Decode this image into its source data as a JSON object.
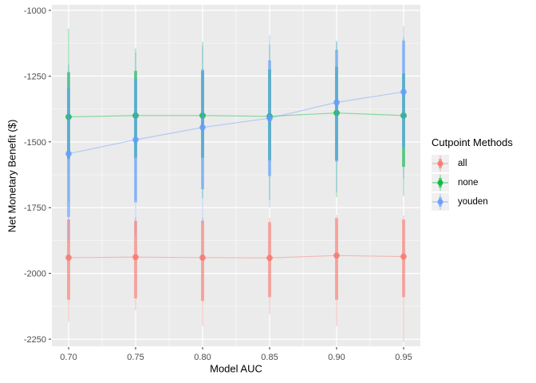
{
  "figure": {
    "background": "#FFFFFF",
    "panel_background": "#EBEBEB",
    "gridline_color": "#FFFFFF",
    "tick_color": "#333333",
    "tick_label_color": "#4D4D4D",
    "axis_title_color": "#000000",
    "legend_key_background": "#F0F0F0"
  },
  "chart_data": {
    "type": "pointrange-line",
    "title": "",
    "xlabel": "Model AUC",
    "ylabel": "Net Monetary Benefit ($)",
    "x": [
      0.7,
      0.75,
      0.8,
      0.85,
      0.9,
      0.95
    ],
    "xtick_labels": [
      "0.70",
      "0.75",
      "0.80",
      "0.85",
      "0.90",
      "0.95"
    ],
    "ytick_values": [
      -1000,
      -1250,
      -1500,
      -1750,
      -2000,
      -2250
    ],
    "ytick_labels": [
      "-1000",
      "-1250",
      "-1500",
      "-1750",
      "-2000",
      "-2250"
    ],
    "xlim": [
      0.6875,
      0.9625
    ],
    "ylim": [
      -2277,
      -979
    ],
    "x_minor": [
      0.725,
      0.775,
      0.825,
      0.875,
      0.925
    ],
    "y_minor": [
      -1125,
      -1375,
      -1625,
      -1875,
      -2125
    ],
    "grid": "major+minor, white on grey panel",
    "legend": {
      "title": "Cutpoint Methods",
      "position": "right",
      "items": [
        {
          "label": "all",
          "color": "#F8766D"
        },
        {
          "label": "none",
          "color": "#00BA38"
        },
        {
          "label": "youden",
          "color": "#619CFF"
        }
      ]
    },
    "series": [
      {
        "name": "all",
        "color": "#F8766D",
        "y": [
          -1940,
          -1938,
          -1940,
          -1941,
          -1932,
          -1936
        ],
        "inner": [
          [
            -1795,
            -2100
          ],
          [
            -1800,
            -2095
          ],
          [
            -1800,
            -2105
          ],
          [
            -1805,
            -2090
          ],
          [
            -1790,
            -2100
          ],
          [
            -1795,
            -2090
          ]
        ],
        "outer": [
          [
            -1782,
            -2185
          ],
          [
            -1786,
            -2140
          ],
          [
            -1788,
            -2200
          ],
          [
            -1790,
            -2155
          ],
          [
            -1778,
            -2200
          ],
          [
            -1780,
            -2260
          ]
        ]
      },
      {
        "name": "none",
        "color": "#00BA38",
        "y": [
          -1405,
          -1400,
          -1400,
          -1403,
          -1390,
          -1400
        ],
        "inner": [
          [
            -1235,
            -1565
          ],
          [
            -1230,
            -1560
          ],
          [
            -1230,
            -1560
          ],
          [
            -1225,
            -1570
          ],
          [
            -1215,
            -1570
          ],
          [
            -1240,
            -1595
          ]
        ],
        "outer": [
          [
            -1070,
            -1730
          ],
          [
            -1145,
            -1720
          ],
          [
            -1120,
            -1715
          ],
          [
            -1130,
            -1720
          ],
          [
            -1120,
            -1710
          ],
          [
            -1105,
            -1705
          ]
        ]
      },
      {
        "name": "youden",
        "color": "#619CFF",
        "y": [
          -1545,
          -1492,
          -1445,
          -1410,
          -1350,
          -1310
        ],
        "inner": [
          [
            -1295,
            -1785
          ],
          [
            -1260,
            -1730
          ],
          [
            -1225,
            -1680
          ],
          [
            -1190,
            -1630
          ],
          [
            -1150,
            -1575
          ],
          [
            -1115,
            -1520
          ]
        ],
        "outer": [
          [
            -1205,
            -1875
          ],
          [
            -1160,
            -1855
          ],
          [
            -1135,
            -1810
          ],
          [
            -1095,
            -1750
          ],
          [
            -1115,
            -1690
          ],
          [
            -1060,
            -1640
          ]
        ]
      }
    ]
  }
}
